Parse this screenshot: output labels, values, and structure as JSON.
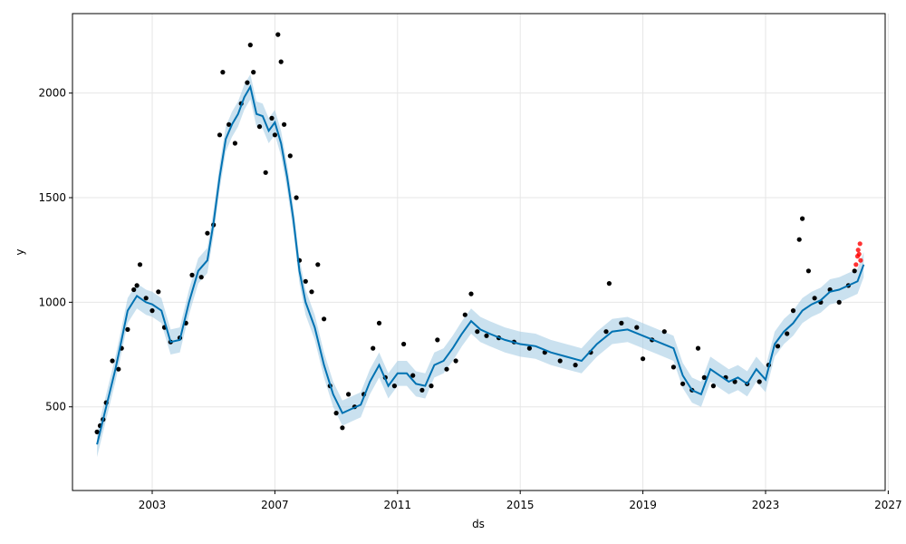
{
  "chart_data": {
    "type": "line",
    "title": "",
    "xlabel": "ds",
    "ylabel": "y",
    "xlim": [
      2000.4,
      2026.9
    ],
    "ylim": [
      100,
      2380
    ],
    "grid": true,
    "legend": "none",
    "x_ticks": [
      2003,
      2007,
      2011,
      2015,
      2019,
      2023,
      2027
    ],
    "y_ticks": [
      500,
      1000,
      1500,
      2000
    ],
    "colors": {
      "forecast_line": "#0072B2",
      "uncertainty_band": "#a6cde4",
      "observations": "#000000",
      "highlight": "#ff0000",
      "grid": "#e6e6e6",
      "axes": "#000000"
    },
    "forecast": {
      "x": [
        2001.2,
        2001.5,
        2001.8,
        2002.0,
        2002.2,
        2002.5,
        2002.8,
        2003.0,
        2003.3,
        2003.6,
        2003.9,
        2004.2,
        2004.5,
        2004.8,
        2005.0,
        2005.2,
        2005.4,
        2005.6,
        2005.8,
        2006.0,
        2006.2,
        2006.4,
        2006.6,
        2006.8,
        2007.0,
        2007.2,
        2007.4,
        2007.6,
        2007.8,
        2008.0,
        2008.3,
        2008.6,
        2008.9,
        2009.2,
        2009.5,
        2009.8,
        2010.1,
        2010.4,
        2010.7,
        2011.0,
        2011.3,
        2011.6,
        2011.9,
        2012.2,
        2012.5,
        2012.8,
        2013.1,
        2013.4,
        2013.7,
        2014.0,
        2014.5,
        2015.0,
        2015.5,
        2016.0,
        2016.5,
        2017.0,
        2017.5,
        2018.0,
        2018.5,
        2019.0,
        2019.5,
        2020.0,
        2020.3,
        2020.6,
        2020.9,
        2021.2,
        2021.5,
        2021.8,
        2022.1,
        2022.4,
        2022.7,
        2023.0,
        2023.3,
        2023.6,
        2023.9,
        2024.2,
        2024.5,
        2024.8,
        2025.1,
        2025.4,
        2025.7,
        2026.0,
        2026.2
      ],
      "y": [
        320,
        500,
        680,
        820,
        960,
        1030,
        1000,
        990,
        960,
        810,
        820,
        1000,
        1150,
        1200,
        1380,
        1600,
        1780,
        1850,
        1900,
        1980,
        2030,
        1900,
        1890,
        1820,
        1860,
        1760,
        1600,
        1400,
        1150,
        1000,
        880,
        700,
        560,
        470,
        490,
        510,
        620,
        700,
        600,
        660,
        660,
        610,
        600,
        700,
        720,
        780,
        850,
        910,
        870,
        850,
        820,
        800,
        790,
        760,
        740,
        720,
        800,
        860,
        870,
        840,
        810,
        780,
        650,
        580,
        560,
        680,
        650,
        620,
        640,
        610,
        680,
        630,
        800,
        860,
        900,
        960,
        990,
        1010,
        1050,
        1060,
        1080,
        1100,
        1180
      ],
      "band": 60
    },
    "observations": [
      {
        "x": 2001.2,
        "y": 380
      },
      {
        "x": 2001.3,
        "y": 410
      },
      {
        "x": 2001.4,
        "y": 440
      },
      {
        "x": 2001.5,
        "y": 520
      },
      {
        "x": 2001.7,
        "y": 720
      },
      {
        "x": 2001.9,
        "y": 680
      },
      {
        "x": 2002.0,
        "y": 780
      },
      {
        "x": 2002.2,
        "y": 870
      },
      {
        "x": 2002.4,
        "y": 1060
      },
      {
        "x": 2002.5,
        "y": 1080
      },
      {
        "x": 2002.6,
        "y": 1180
      },
      {
        "x": 2002.8,
        "y": 1020
      },
      {
        "x": 2003.0,
        "y": 960
      },
      {
        "x": 2003.2,
        "y": 1050
      },
      {
        "x": 2003.4,
        "y": 880
      },
      {
        "x": 2003.6,
        "y": 810
      },
      {
        "x": 2003.9,
        "y": 830
      },
      {
        "x": 2004.1,
        "y": 900
      },
      {
        "x": 2004.3,
        "y": 1130
      },
      {
        "x": 2004.6,
        "y": 1120
      },
      {
        "x": 2004.8,
        "y": 1330
      },
      {
        "x": 2005.0,
        "y": 1370
      },
      {
        "x": 2005.2,
        "y": 1800
      },
      {
        "x": 2005.3,
        "y": 2100
      },
      {
        "x": 2005.5,
        "y": 1850
      },
      {
        "x": 2005.7,
        "y": 1760
      },
      {
        "x": 2005.9,
        "y": 1950
      },
      {
        "x": 2006.1,
        "y": 2050
      },
      {
        "x": 2006.2,
        "y": 2230
      },
      {
        "x": 2006.3,
        "y": 2100
      },
      {
        "x": 2006.5,
        "y": 1840
      },
      {
        "x": 2006.7,
        "y": 1620
      },
      {
        "x": 2006.9,
        "y": 1880
      },
      {
        "x": 2007.0,
        "y": 1800
      },
      {
        "x": 2007.1,
        "y": 2280
      },
      {
        "x": 2007.2,
        "y": 2150
      },
      {
        "x": 2007.3,
        "y": 1850
      },
      {
        "x": 2007.5,
        "y": 1700
      },
      {
        "x": 2007.7,
        "y": 1500
      },
      {
        "x": 2007.8,
        "y": 1200
      },
      {
        "x": 2008.0,
        "y": 1100
      },
      {
        "x": 2008.2,
        "y": 1050
      },
      {
        "x": 2008.4,
        "y": 1180
      },
      {
        "x": 2008.6,
        "y": 920
      },
      {
        "x": 2008.8,
        "y": 600
      },
      {
        "x": 2009.0,
        "y": 470
      },
      {
        "x": 2009.2,
        "y": 400
      },
      {
        "x": 2009.4,
        "y": 560
      },
      {
        "x": 2009.6,
        "y": 500
      },
      {
        "x": 2009.9,
        "y": 560
      },
      {
        "x": 2010.2,
        "y": 780
      },
      {
        "x": 2010.4,
        "y": 900
      },
      {
        "x": 2010.6,
        "y": 640
      },
      {
        "x": 2010.9,
        "y": 600
      },
      {
        "x": 2011.2,
        "y": 800
      },
      {
        "x": 2011.5,
        "y": 650
      },
      {
        "x": 2011.8,
        "y": 580
      },
      {
        "x": 2012.1,
        "y": 600
      },
      {
        "x": 2012.3,
        "y": 820
      },
      {
        "x": 2012.6,
        "y": 680
      },
      {
        "x": 2012.9,
        "y": 720
      },
      {
        "x": 2013.2,
        "y": 940
      },
      {
        "x": 2013.4,
        "y": 1040
      },
      {
        "x": 2013.6,
        "y": 860
      },
      {
        "x": 2013.9,
        "y": 840
      },
      {
        "x": 2014.3,
        "y": 830
      },
      {
        "x": 2014.8,
        "y": 810
      },
      {
        "x": 2015.3,
        "y": 780
      },
      {
        "x": 2015.8,
        "y": 760
      },
      {
        "x": 2016.3,
        "y": 720
      },
      {
        "x": 2016.8,
        "y": 700
      },
      {
        "x": 2017.3,
        "y": 760
      },
      {
        "x": 2017.8,
        "y": 860
      },
      {
        "x": 2017.9,
        "y": 1090
      },
      {
        "x": 2018.3,
        "y": 900
      },
      {
        "x": 2018.8,
        "y": 880
      },
      {
        "x": 2019.0,
        "y": 730
      },
      {
        "x": 2019.3,
        "y": 820
      },
      {
        "x": 2019.7,
        "y": 860
      },
      {
        "x": 2020.0,
        "y": 690
      },
      {
        "x": 2020.3,
        "y": 610
      },
      {
        "x": 2020.6,
        "y": 580
      },
      {
        "x": 2020.8,
        "y": 780
      },
      {
        "x": 2021.0,
        "y": 640
      },
      {
        "x": 2021.3,
        "y": 600
      },
      {
        "x": 2021.7,
        "y": 640
      },
      {
        "x": 2022.0,
        "y": 620
      },
      {
        "x": 2022.4,
        "y": 610
      },
      {
        "x": 2022.8,
        "y": 620
      },
      {
        "x": 2023.1,
        "y": 700
      },
      {
        "x": 2023.4,
        "y": 790
      },
      {
        "x": 2023.7,
        "y": 850
      },
      {
        "x": 2023.9,
        "y": 960
      },
      {
        "x": 2024.1,
        "y": 1300
      },
      {
        "x": 2024.2,
        "y": 1400
      },
      {
        "x": 2024.4,
        "y": 1150
      },
      {
        "x": 2024.6,
        "y": 1020
      },
      {
        "x": 2024.8,
        "y": 1000
      },
      {
        "x": 2025.1,
        "y": 1060
      },
      {
        "x": 2025.4,
        "y": 1000
      },
      {
        "x": 2025.7,
        "y": 1080
      },
      {
        "x": 2025.9,
        "y": 1150
      }
    ],
    "highlighted_observations": [
      {
        "x": 2025.95,
        "y": 1180
      },
      {
        "x": 2026.0,
        "y": 1220
      },
      {
        "x": 2026.02,
        "y": 1250
      },
      {
        "x": 2026.05,
        "y": 1230
      },
      {
        "x": 2026.08,
        "y": 1280
      },
      {
        "x": 2026.1,
        "y": 1200
      }
    ]
  }
}
